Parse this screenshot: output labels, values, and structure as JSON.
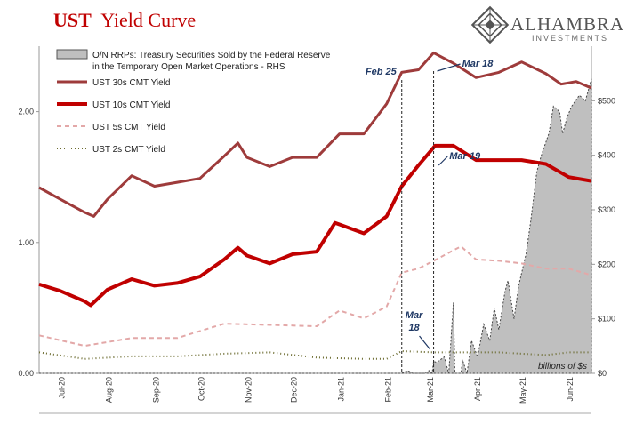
{
  "header": {
    "title_prefix": "UST",
    "title_rest": "Yield Curve",
    "brand_name": "ALHAMBRA",
    "brand_sub": "INVESTMENTS"
  },
  "chart_data": {
    "type": "line",
    "title": "UST Yield Curve",
    "y_left": {
      "range": [
        0,
        2.5
      ],
      "ticks": [
        "0.00",
        "1.00",
        "2.00"
      ]
    },
    "y_right": {
      "range": [
        0,
        600
      ],
      "ticks": [
        "$0",
        "$100",
        "$200",
        "$300",
        "$400",
        "$500"
      ],
      "unit_label": "billions of $s"
    },
    "x_ticks": [
      "Jul-20",
      "Aug-20",
      "Sep-20",
      "Oct-20",
      "Nov-20",
      "Dec-20",
      "Jan-21",
      "Feb-21",
      "Mar-21",
      "Apr-21",
      "May-21",
      "Jun-21"
    ],
    "x_range": [
      "2020-07-01",
      "2021-06-30"
    ],
    "grid": false,
    "legend_position": "top-left",
    "series": [
      {
        "name": "O/N RRPs: Treasury Securities Sold by the Federal Reserve in the Temporary Open Market Operations - RHS",
        "axis": "right",
        "style": "area",
        "color": "#bfbfbf",
        "points": [
          [
            "2020-07-01",
            0
          ],
          [
            "2021-02-01",
            0
          ],
          [
            "2021-02-25",
            0
          ],
          [
            "2021-03-01",
            5
          ],
          [
            "2021-03-04",
            0
          ],
          [
            "2021-03-12",
            0
          ],
          [
            "2021-03-15",
            5
          ],
          [
            "2021-03-17",
            0
          ],
          [
            "2021-03-18",
            22
          ],
          [
            "2021-03-20",
            20
          ],
          [
            "2021-03-25",
            30
          ],
          [
            "2021-03-28",
            0
          ],
          [
            "2021-03-31",
            130
          ],
          [
            "2021-04-01",
            0
          ],
          [
            "2021-04-05",
            0
          ],
          [
            "2021-04-06",
            25
          ],
          [
            "2021-04-09",
            0
          ],
          [
            "2021-04-12",
            60
          ],
          [
            "2021-04-16",
            30
          ],
          [
            "2021-04-20",
            90
          ],
          [
            "2021-04-24",
            60
          ],
          [
            "2021-04-27",
            120
          ],
          [
            "2021-04-30",
            80
          ],
          [
            "2021-05-04",
            150
          ],
          [
            "2021-05-06",
            170
          ],
          [
            "2021-05-10",
            100
          ],
          [
            "2021-05-13",
            160
          ],
          [
            "2021-05-18",
            220
          ],
          [
            "2021-05-21",
            280
          ],
          [
            "2021-05-25",
            370
          ],
          [
            "2021-05-28",
            400
          ],
          [
            "2021-06-02",
            440
          ],
          [
            "2021-06-05",
            490
          ],
          [
            "2021-06-09",
            480
          ],
          [
            "2021-06-11",
            440
          ],
          [
            "2021-06-14",
            470
          ],
          [
            "2021-06-17",
            490
          ],
          [
            "2021-06-22",
            510
          ],
          [
            "2021-06-26",
            500
          ],
          [
            "2021-06-30",
            540
          ]
        ]
      },
      {
        "name": "UST 30s CMT Yield",
        "axis": "left",
        "style": "solid",
        "color": "#9e3b3b",
        "points": [
          [
            "2020-07-01",
            1.42
          ],
          [
            "2020-07-15",
            1.33
          ],
          [
            "2020-07-31",
            1.23
          ],
          [
            "2020-08-06",
            1.2
          ],
          [
            "2020-08-15",
            1.33
          ],
          [
            "2020-08-31",
            1.51
          ],
          [
            "2020-09-15",
            1.43
          ],
          [
            "2020-09-30",
            1.46
          ],
          [
            "2020-10-15",
            1.49
          ],
          [
            "2020-10-31",
            1.66
          ],
          [
            "2020-11-09",
            1.76
          ],
          [
            "2020-11-15",
            1.65
          ],
          [
            "2020-11-30",
            1.58
          ],
          [
            "2020-12-15",
            1.65
          ],
          [
            "2020-12-31",
            1.65
          ],
          [
            "2021-01-15",
            1.83
          ],
          [
            "2021-01-31",
            1.83
          ],
          [
            "2021-02-15",
            2.06
          ],
          [
            "2021-02-25",
            2.3
          ],
          [
            "2021-03-08",
            2.32
          ],
          [
            "2021-03-18",
            2.45
          ],
          [
            "2021-03-31",
            2.37
          ],
          [
            "2021-04-15",
            2.26
          ],
          [
            "2021-04-30",
            2.3
          ],
          [
            "2021-05-15",
            2.38
          ],
          [
            "2021-05-31",
            2.29
          ],
          [
            "2021-06-10",
            2.21
          ],
          [
            "2021-06-20",
            2.23
          ],
          [
            "2021-06-30",
            2.18
          ]
        ]
      },
      {
        "name": "UST 10s CMT Yield",
        "axis": "left",
        "style": "solid",
        "color": "#c00000",
        "points": [
          [
            "2020-07-01",
            0.68
          ],
          [
            "2020-07-15",
            0.63
          ],
          [
            "2020-07-31",
            0.55
          ],
          [
            "2020-08-04",
            0.52
          ],
          [
            "2020-08-15",
            0.64
          ],
          [
            "2020-08-31",
            0.72
          ],
          [
            "2020-09-15",
            0.67
          ],
          [
            "2020-09-30",
            0.69
          ],
          [
            "2020-10-15",
            0.74
          ],
          [
            "2020-10-31",
            0.87
          ],
          [
            "2020-11-09",
            0.96
          ],
          [
            "2020-11-15",
            0.9
          ],
          [
            "2020-11-30",
            0.84
          ],
          [
            "2020-12-15",
            0.91
          ],
          [
            "2020-12-31",
            0.93
          ],
          [
            "2021-01-12",
            1.15
          ],
          [
            "2021-01-31",
            1.07
          ],
          [
            "2021-02-15",
            1.2
          ],
          [
            "2021-02-25",
            1.43
          ],
          [
            "2021-03-08",
            1.59
          ],
          [
            "2021-03-19",
            1.74
          ],
          [
            "2021-03-31",
            1.74
          ],
          [
            "2021-04-15",
            1.63
          ],
          [
            "2021-04-30",
            1.63
          ],
          [
            "2021-05-15",
            1.63
          ],
          [
            "2021-05-31",
            1.6
          ],
          [
            "2021-06-15",
            1.5
          ],
          [
            "2021-06-30",
            1.47
          ]
        ]
      },
      {
        "name": "UST 5s CMT Yield",
        "axis": "left",
        "style": "dashed",
        "color": "#e3a8a8",
        "points": [
          [
            "2020-07-01",
            0.29
          ],
          [
            "2020-07-31",
            0.21
          ],
          [
            "2020-08-31",
            0.27
          ],
          [
            "2020-09-30",
            0.27
          ],
          [
            "2020-10-31",
            0.38
          ],
          [
            "2020-11-30",
            0.37
          ],
          [
            "2020-12-31",
            0.36
          ],
          [
            "2021-01-15",
            0.48
          ],
          [
            "2021-01-31",
            0.42
          ],
          [
            "2021-02-15",
            0.51
          ],
          [
            "2021-02-25",
            0.77
          ],
          [
            "2021-03-08",
            0.8
          ],
          [
            "2021-03-18",
            0.86
          ],
          [
            "2021-03-31",
            0.94
          ],
          [
            "2021-04-05",
            0.97
          ],
          [
            "2021-04-15",
            0.87
          ],
          [
            "2021-04-30",
            0.86
          ],
          [
            "2021-05-15",
            0.84
          ],
          [
            "2021-05-31",
            0.8
          ],
          [
            "2021-06-15",
            0.8
          ],
          [
            "2021-06-30",
            0.75
          ]
        ]
      },
      {
        "name": "UST 2s CMT Yield",
        "axis": "left",
        "style": "dotted",
        "color": "#6b6b2f",
        "points": [
          [
            "2020-07-01",
            0.16
          ],
          [
            "2020-07-31",
            0.11
          ],
          [
            "2020-08-31",
            0.13
          ],
          [
            "2020-09-30",
            0.13
          ],
          [
            "2020-10-31",
            0.15
          ],
          [
            "2020-11-30",
            0.16
          ],
          [
            "2020-12-31",
            0.12
          ],
          [
            "2021-01-31",
            0.11
          ],
          [
            "2021-02-15",
            0.11
          ],
          [
            "2021-02-25",
            0.17
          ],
          [
            "2021-03-18",
            0.16
          ],
          [
            "2021-03-31",
            0.16
          ],
          [
            "2021-04-15",
            0.16
          ],
          [
            "2021-04-30",
            0.16
          ],
          [
            "2021-05-15",
            0.15
          ],
          [
            "2021-05-31",
            0.14
          ],
          [
            "2021-06-15",
            0.16
          ],
          [
            "2021-06-30",
            0.16
          ]
        ]
      }
    ],
    "annotations": [
      {
        "text": "Feb 25",
        "date": "2021-02-25",
        "type": "vline"
      },
      {
        "text": "Mar 18",
        "date": "2021-03-18",
        "type": "vline"
      },
      {
        "text": "Mar 19",
        "date": "2021-03-19",
        "type": "label"
      },
      {
        "text": "Mar",
        "date": "2021-03-18",
        "type": "label"
      },
      {
        "text": "18",
        "date": "2021-03-18",
        "type": "label"
      }
    ]
  }
}
